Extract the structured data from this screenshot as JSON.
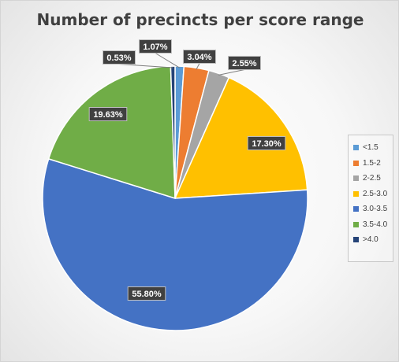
{
  "chart_data": {
    "type": "pie",
    "title": "Number of precincts per score range",
    "categories": [
      "<1.5",
      "1.5-2",
      "2-2.5",
      "2.5-3.0",
      "3.0-3.5",
      "3.5-4.0",
      ">4.0"
    ],
    "values": [
      1.07,
      3.04,
      2.55,
      17.3,
      55.8,
      19.63,
      0.53
    ],
    "data_labels": [
      "1.07%",
      "3.04%",
      "2.55%",
      "17.30%",
      "55.80%",
      "19.63%",
      "0.53%"
    ],
    "colors": [
      "#5b9bd5",
      "#ed7d31",
      "#a5a5a5",
      "#ffc000",
      "#4472c4",
      "#70ad47",
      "#264478"
    ],
    "legend_position": "right",
    "label_style": "dark-callout-boxes"
  }
}
